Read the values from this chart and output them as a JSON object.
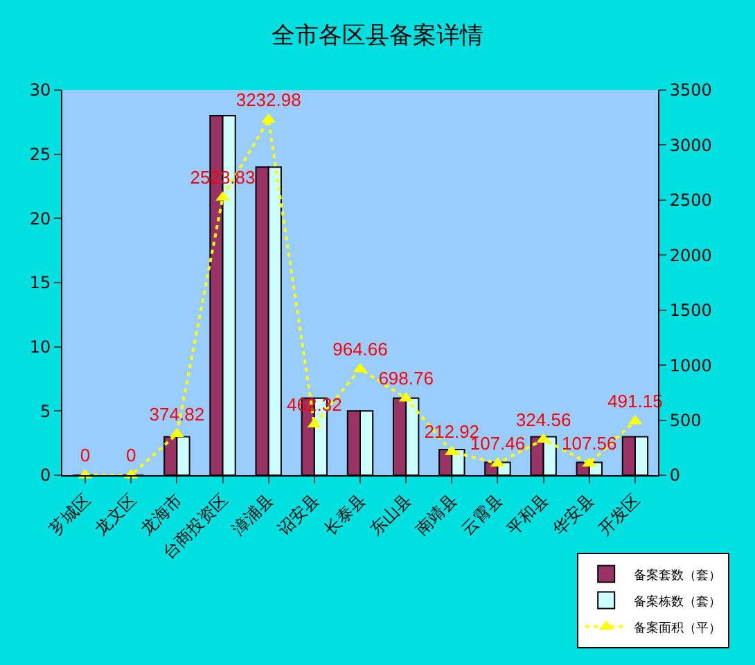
{
  "chart_data": {
    "type": "bar",
    "title": "全市各区县备案详情",
    "categories": [
      "芗城区",
      "龙文区",
      "龙海市",
      "台商投资区",
      "漳浦县",
      "诏安县",
      "长泰县",
      "东山县",
      "南靖县",
      "云霄县",
      "平和县",
      "华安县",
      "开发区"
    ],
    "series": [
      {
        "name": "备案套数（套）",
        "color": "#993366",
        "values": [
          0,
          0,
          3,
          28,
          24,
          6,
          5,
          6,
          2,
          1,
          3,
          1,
          3
        ]
      },
      {
        "name": "备案栋数（套）",
        "color": "#ccffff",
        "values": [
          0,
          0,
          3,
          28,
          24,
          6,
          5,
          6,
          2,
          1,
          3,
          1,
          3
        ]
      },
      {
        "name": "备案面积（平）",
        "type": "line",
        "axis": "y2",
        "color": "#ffff00",
        "marker": "triangle",
        "line_style": "dotted",
        "values": [
          0,
          0,
          374.82,
          2523.83,
          3232.98,
          462.32,
          964.66,
          698.76,
          212.92,
          107.46,
          324.56,
          107.56,
          491.15
        ],
        "value_labels": [
          "0",
          "0",
          "374.82",
          "2523.83",
          "3232.98",
          "462.32",
          "964.66",
          "698.76",
          "212.92",
          "107.46",
          "324.56",
          "107.56",
          "491.15"
        ]
      }
    ],
    "ylim": [
      0,
      30
    ],
    "yticks": [
      0,
      5,
      10,
      15,
      20,
      25,
      30
    ],
    "y2lim": [
      0,
      3500
    ],
    "y2ticks": [
      0,
      500,
      1000,
      1500,
      2000,
      2500,
      3000,
      3500
    ],
    "grid": false,
    "legend": "bottom right"
  }
}
